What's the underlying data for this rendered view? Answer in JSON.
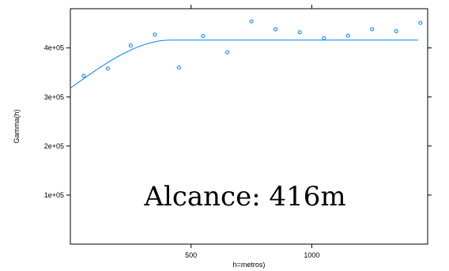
{
  "chart_data": {
    "type": "scatter",
    "xlabel": "h=metros)",
    "ylabel": "Gamma(h)",
    "xlim": [
      0,
      1480
    ],
    "ylim": [
      0,
      480000
    ],
    "x_ticks": [
      500,
      1000
    ],
    "y_ticks": [
      100000,
      200000,
      300000,
      400000
    ],
    "y_tick_labels": [
      "1e+05",
      "2e+05",
      "3e+05",
      "4e+05"
    ],
    "grid": false,
    "points": [
      {
        "x": 55,
        "y": 343000
      },
      {
        "x": 155,
        "y": 358000
      },
      {
        "x": 250,
        "y": 405000
      },
      {
        "x": 350,
        "y": 427000
      },
      {
        "x": 450,
        "y": 360000
      },
      {
        "x": 550,
        "y": 424000
      },
      {
        "x": 650,
        "y": 391000
      },
      {
        "x": 750,
        "y": 454000
      },
      {
        "x": 850,
        "y": 438000
      },
      {
        "x": 950,
        "y": 432000
      },
      {
        "x": 1050,
        "y": 420000
      },
      {
        "x": 1150,
        "y": 425000
      },
      {
        "x": 1250,
        "y": 438000
      },
      {
        "x": 1350,
        "y": 434000
      },
      {
        "x": 1450,
        "y": 451000
      }
    ],
    "model": {
      "type": "spherical",
      "nugget": 318000,
      "sill": 416000,
      "range": 416,
      "x_end": 1440
    },
    "annotation": "Alcance: 416m",
    "point_color": "#0080ff",
    "line_color": "#0080ff"
  }
}
